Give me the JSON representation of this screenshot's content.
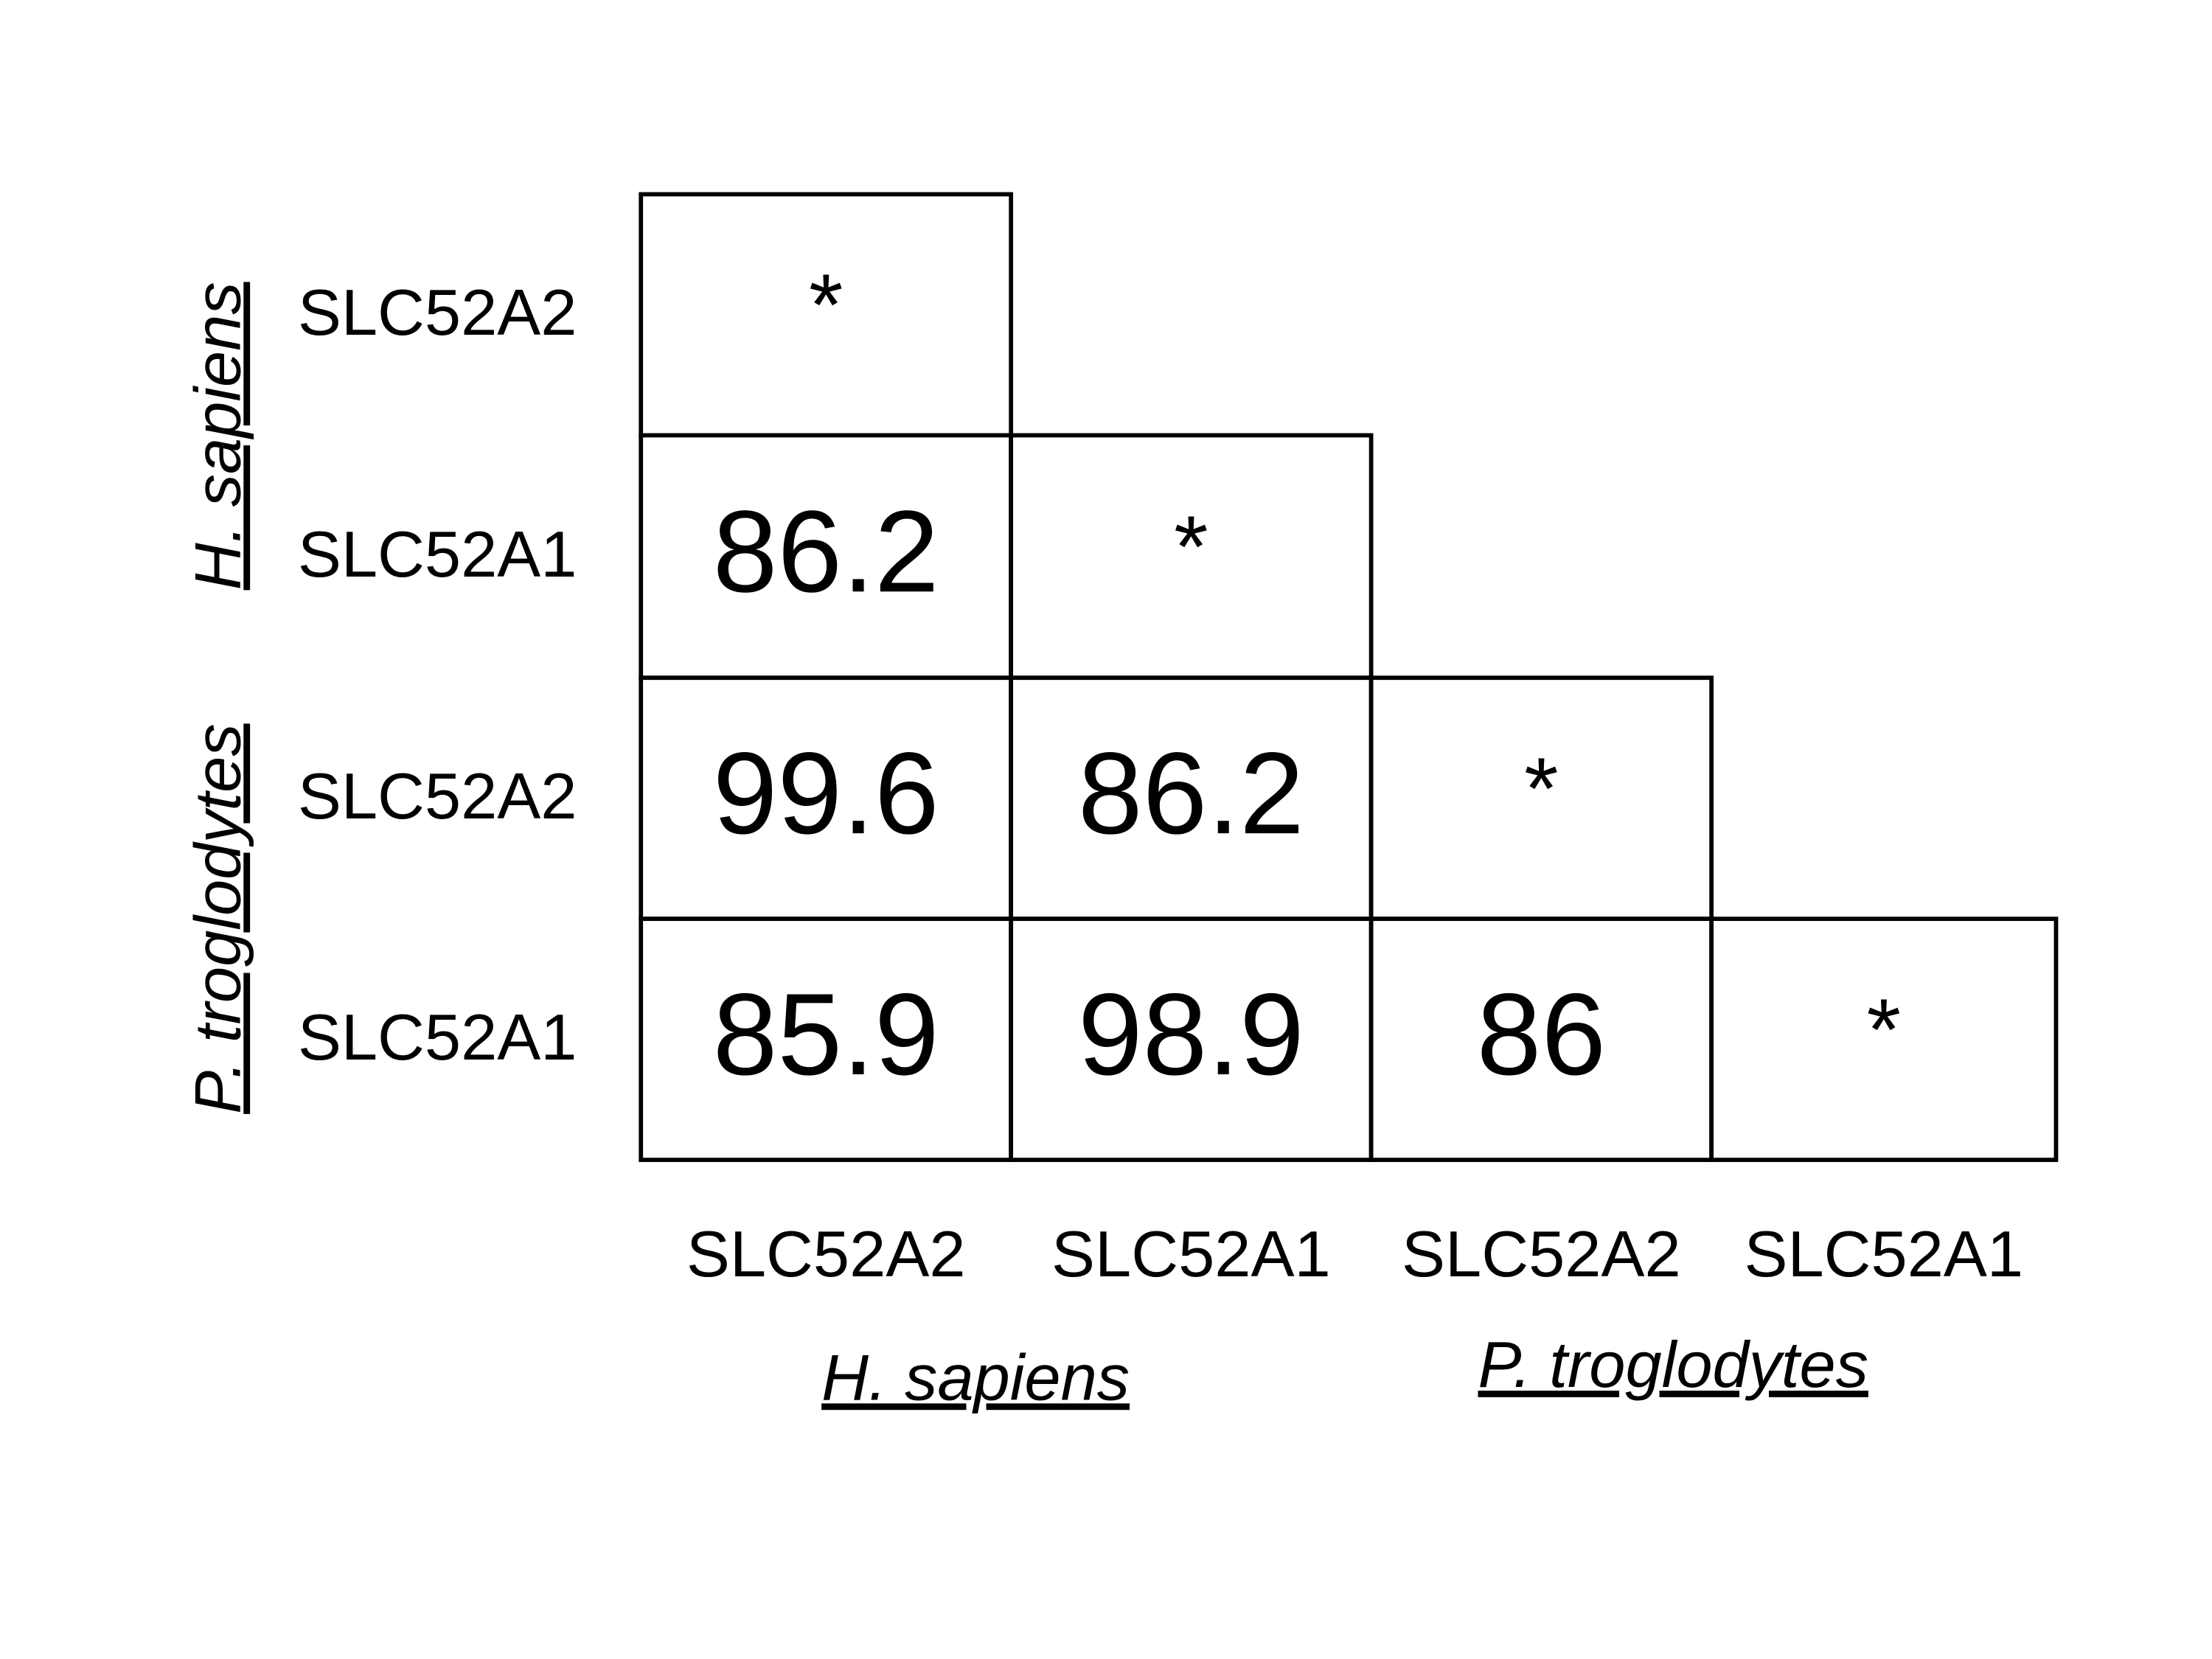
{
  "row_labels": [
    "SLC52A2",
    "SLC52A1",
    "SLC52A2",
    "SLC52A1"
  ],
  "row_groups": [
    "H. sapiens",
    "P. troglodytes"
  ],
  "column_labels": [
    "SLC52A2",
    "SLC52A1",
    "SLC52A2",
    "SLC52A1"
  ],
  "column_groups": [
    "H. sapiens",
    "P. troglodytes"
  ],
  "cells": [
    [
      "*"
    ],
    [
      86.2,
      "*"
    ],
    [
      99.6,
      86.2,
      "*"
    ],
    [
      85.9,
      98.9,
      86,
      "*"
    ]
  ]
}
